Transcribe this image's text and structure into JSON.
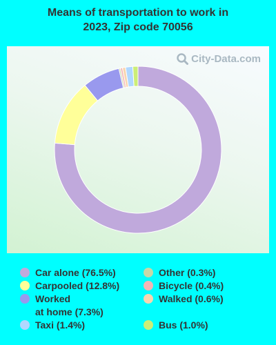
{
  "title_line1": "Means of transportation to work in",
  "title_line2": "2023, Zip code 70056",
  "watermark": "City-Data.com",
  "chart_data": {
    "type": "pie",
    "variant": "donut",
    "title": "Means of transportation to work in 2023, Zip code 70056",
    "slices": [
      {
        "label": "Car alone (76.5%)",
        "value": 76.5,
        "color": "#c0a9dc"
      },
      {
        "label": "Carpooled (12.8%)",
        "value": 12.8,
        "color": "#ffff99"
      },
      {
        "label": "Worked\nat home (7.3%)",
        "value": 7.3,
        "color": "#9999ee"
      },
      {
        "label": "Other (0.3%)",
        "value": 0.3,
        "color": "#c8d8a8"
      },
      {
        "label": "Bicycle (0.4%)",
        "value": 0.4,
        "color": "#f4b6b6"
      },
      {
        "label": "Walked (0.6%)",
        "value": 0.6,
        "color": "#f8d6b0"
      },
      {
        "label": "Taxi (1.4%)",
        "value": 1.4,
        "color": "#b0d8ff"
      },
      {
        "label": "Bus (1.0%)",
        "value": 1.0,
        "color": "#ccee77"
      }
    ],
    "legend_order": [
      0,
      3,
      1,
      4,
      2,
      5,
      6,
      7
    ],
    "legend_placement": "bottom"
  }
}
